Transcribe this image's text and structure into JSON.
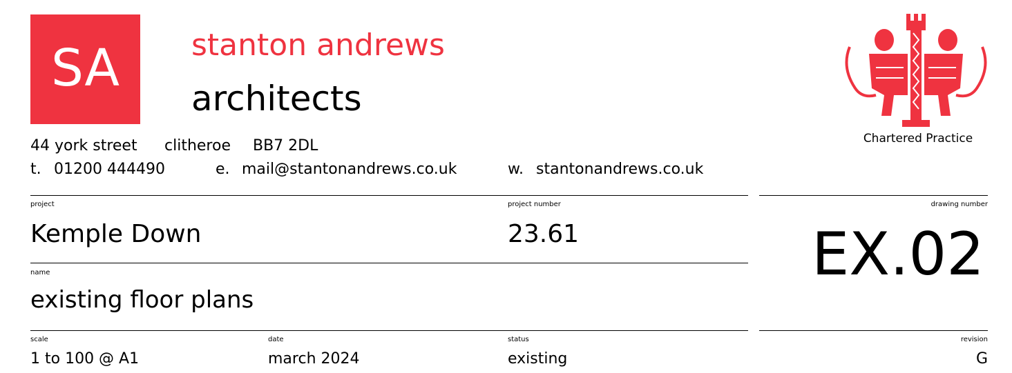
{
  "logo": {
    "initials": "SA",
    "name": "stanton andrews",
    "subtitle": "architects",
    "crest_caption": "Chartered Practice"
  },
  "address": [
    "44 york street",
    "clitheroe",
    "BB7 2DL"
  ],
  "contacts": [
    {
      "prefix": "t.",
      "value": "01200 444490"
    },
    {
      "prefix": "e.",
      "value": "mail@stantonandrews.co.uk"
    },
    {
      "prefix": "w.",
      "value": "stantonandrews.co.uk"
    }
  ],
  "fields": {
    "project": {
      "label": "project",
      "value": "Kemple Down"
    },
    "project_number": {
      "label": "project number",
      "value": "23.61"
    },
    "drawing_number": {
      "label": "drawing number",
      "value": "EX.02"
    },
    "name": {
      "label": "name",
      "value": "existing floor plans"
    },
    "scale": {
      "label": "scale",
      "value": "1 to 100 @ A1"
    },
    "date": {
      "label": "date",
      "value": "march 2024"
    },
    "status": {
      "label": "status",
      "value": "existing"
    },
    "revision": {
      "label": "revision",
      "value": "G"
    }
  }
}
